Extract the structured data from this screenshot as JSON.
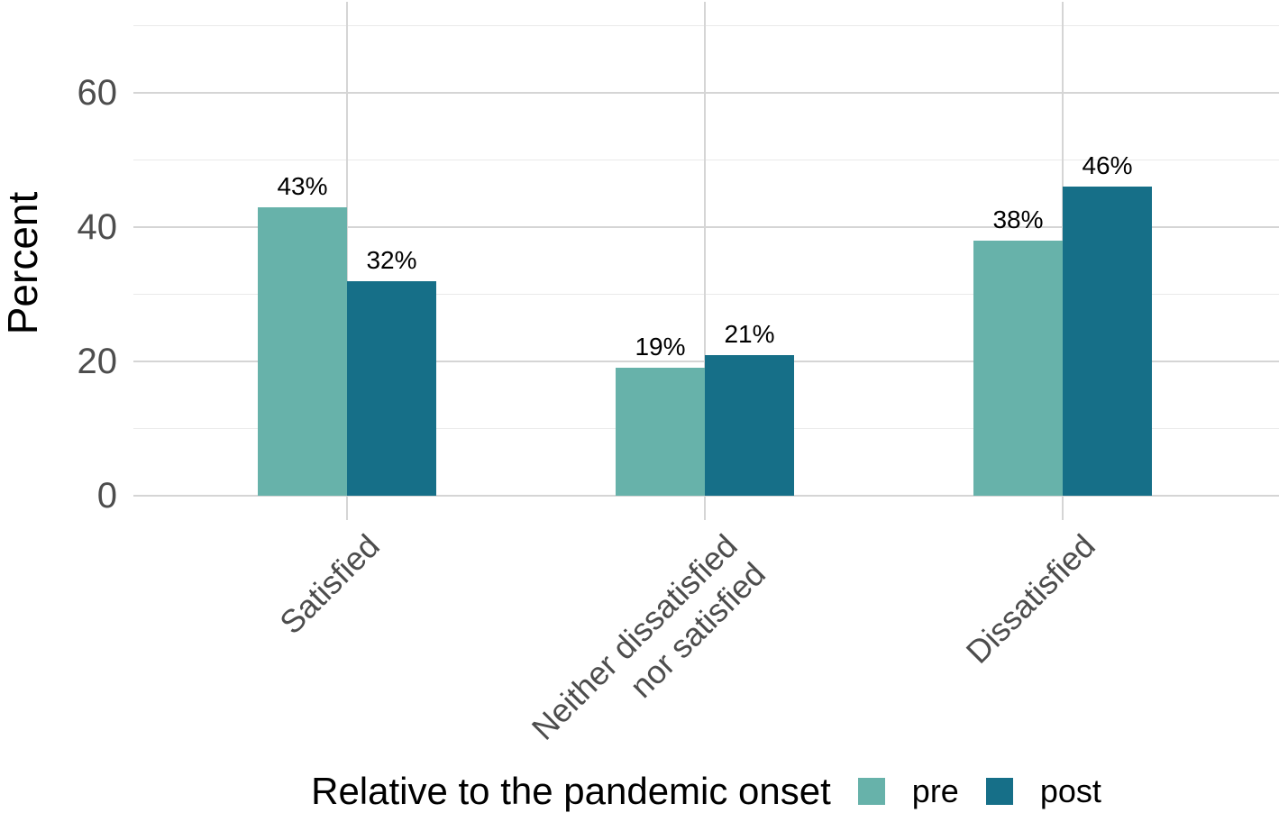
{
  "chart_data": {
    "type": "bar",
    "orientation": "vertical",
    "title": "",
    "xlabel": "",
    "ylabel": "Percent",
    "categories": [
      {
        "lines": [
          "Satisfied"
        ]
      },
      {
        "lines": [
          "Neither dissatisfied",
          "nor satisfied"
        ]
      },
      {
        "lines": [
          "Dissatisfied"
        ]
      }
    ],
    "series": [
      {
        "name": "pre",
        "color": "#67B2AA",
        "values": [
          43,
          19,
          38
        ],
        "labels": [
          "43%",
          "19%",
          "38%"
        ]
      },
      {
        "name": "post",
        "color": "#166F88",
        "values": [
          32,
          21,
          46
        ],
        "labels": [
          "32%",
          "21%",
          "46%"
        ]
      }
    ],
    "y_ticks": [
      0,
      20,
      40,
      60
    ],
    "y_minor_ticks": [
      10,
      30,
      50,
      70
    ],
    "ylim": [
      0,
      72.5
    ],
    "grid": "major+minor horizontal, vertical at category centers",
    "legend": {
      "title": "Relative to the pandemic onset",
      "position": "bottom",
      "items": [
        "pre",
        "post"
      ]
    }
  },
  "colors": {
    "background": "#ffffff",
    "grid_major": "#d5d5d5",
    "grid_minor": "#eaeaea",
    "axis_text": "#4d4d4d",
    "text": "#000000"
  }
}
